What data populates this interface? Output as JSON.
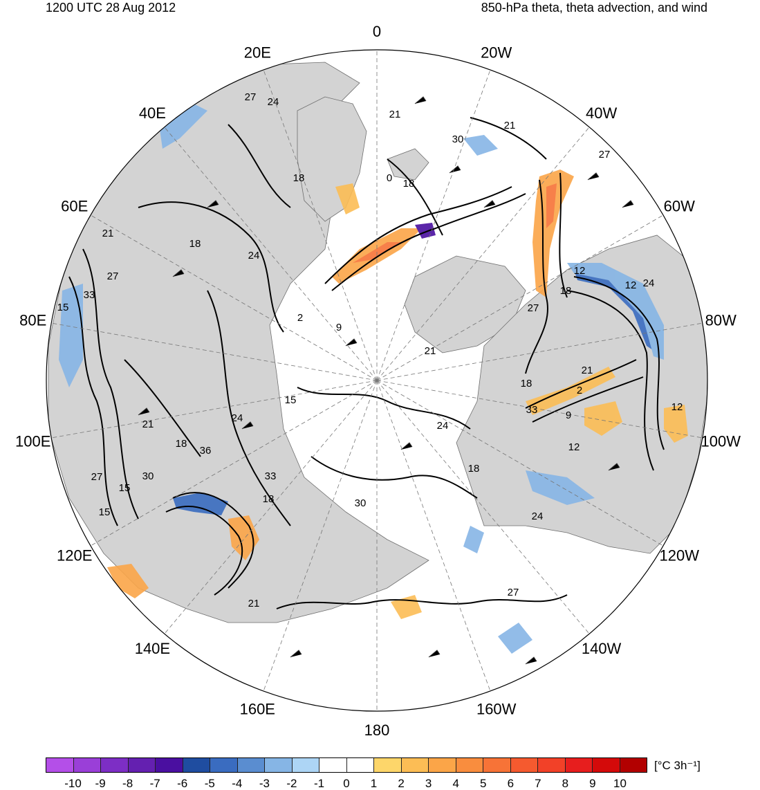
{
  "header": {
    "valid_time": "1200 UTC 28 Aug 2012",
    "title": "850-hPa theta, theta advection, and wind"
  },
  "map": {
    "projection": "north-polar-stereographic",
    "land_color": "#d3d3d3",
    "ocean_color": "#ffffff",
    "longitude_labels": [
      {
        "lon": 0,
        "text": "0"
      },
      {
        "lon": -20,
        "text": "20W"
      },
      {
        "lon": -40,
        "text": "40W"
      },
      {
        "lon": -60,
        "text": "60W"
      },
      {
        "lon": -80,
        "text": "80W"
      },
      {
        "lon": -100,
        "text": "100W"
      },
      {
        "lon": -120,
        "text": "120W"
      },
      {
        "lon": -140,
        "text": "140W"
      },
      {
        "lon": -160,
        "text": "160W"
      },
      {
        "lon": 180,
        "text": "180"
      },
      {
        "lon": 160,
        "text": "160E"
      },
      {
        "lon": 140,
        "text": "140E"
      },
      {
        "lon": 120,
        "text": "120E"
      },
      {
        "lon": 100,
        "text": "100E"
      },
      {
        "lon": 80,
        "text": "80E"
      },
      {
        "lon": 60,
        "text": "60E"
      },
      {
        "lon": 40,
        "text": "40E"
      },
      {
        "lon": 20,
        "text": "20E"
      }
    ],
    "theta_contour_labels": [
      "27",
      "24",
      "21",
      "18",
      "0",
      "18",
      "21",
      "27",
      "30",
      "21",
      "18",
      "24",
      "27",
      "33",
      "15",
      "2",
      "9",
      "15",
      "21",
      "18",
      "24",
      "27",
      "12",
      "12",
      "18",
      "24",
      "21",
      "2",
      "33",
      "9",
      "12",
      "24",
      "21",
      "18",
      "36",
      "27",
      "30",
      "15",
      "33",
      "18",
      "12",
      "15",
      "30",
      "18",
      "24",
      "21",
      "27"
    ],
    "advection_patches": [
      {
        "sign": "warm",
        "level": 6
      },
      {
        "sign": "warm",
        "level": 4
      },
      {
        "sign": "warm",
        "level": 3
      },
      {
        "sign": "warm",
        "level": 2
      },
      {
        "sign": "cold",
        "level": -6
      },
      {
        "sign": "cold",
        "level": -3
      },
      {
        "sign": "cold",
        "level": -2
      }
    ]
  },
  "colorbar": {
    "units": "[°C 3h⁻¹]",
    "colors": [
      "#b44fe8",
      "#9a3fd8",
      "#7d2ec5",
      "#6420b0",
      "#4a0fa0",
      "#1f4da0",
      "#3a6cc0",
      "#5a8dd0",
      "#86b5e5",
      "#add5f5",
      "#ffffff",
      "#ffffff",
      "#fdd66a",
      "#fcbd55",
      "#fba548",
      "#f98d3e",
      "#f77337",
      "#f55a2f",
      "#f24128",
      "#e71e1e",
      "#d40a0a",
      "#b20000"
    ],
    "tick_labels": [
      "-10",
      "-9",
      "-8",
      "-7",
      "-6",
      "-5",
      "-4",
      "-3",
      "-2",
      "-1",
      "0",
      "1",
      "2",
      "3",
      "4",
      "5",
      "6",
      "7",
      "8",
      "9",
      "10"
    ]
  }
}
